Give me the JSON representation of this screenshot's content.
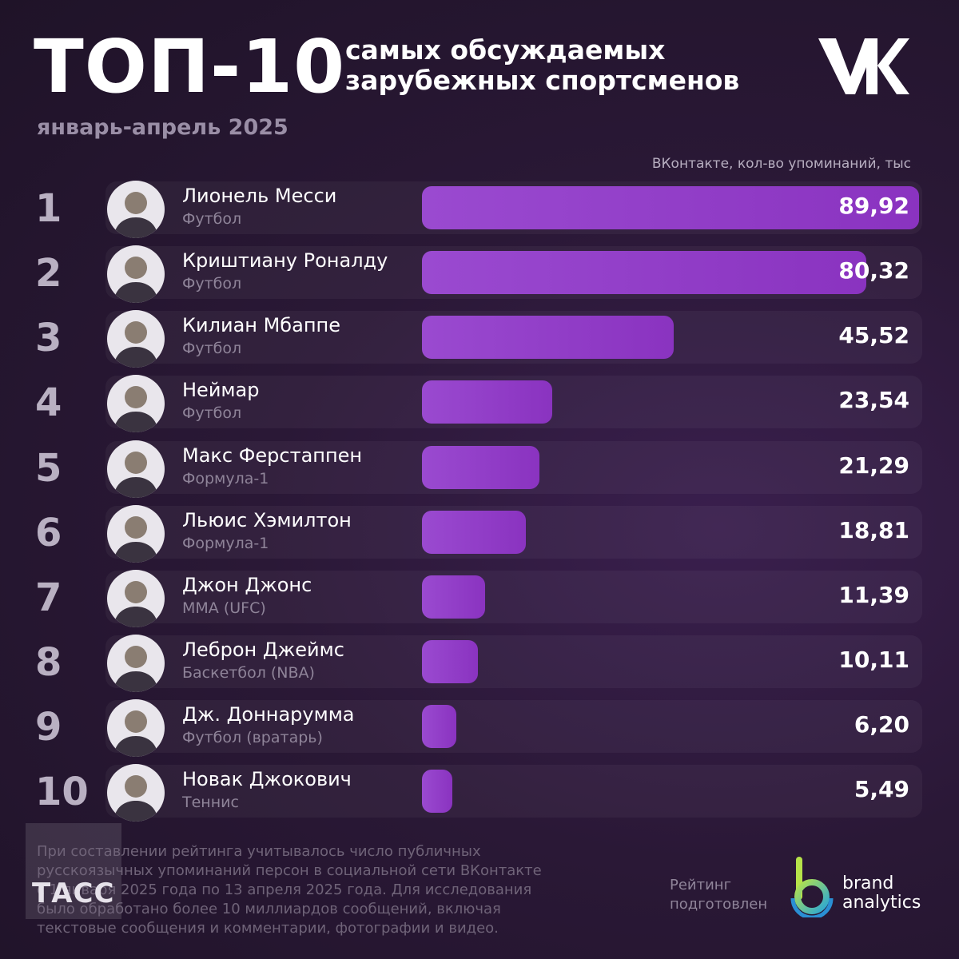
{
  "header": {
    "title": "ТОП-10",
    "subtitle_line1": "самых обсуждаемых",
    "subtitle_line2": "зарубежных спортсменов",
    "period": "январь-апрель 2025",
    "brand_logo": "vk-logo"
  },
  "chart_data": {
    "type": "bar",
    "orientation": "horizontal",
    "unit_label": "ВКонтакте, кол-во упоминаний, тыс",
    "xlim": [
      0,
      89.92
    ],
    "bar_color": "#8e3ec6",
    "items": [
      {
        "rank": "1",
        "name": "Лионель Месси",
        "sport": "Футбол",
        "value": 89.92,
        "value_label": "89,92"
      },
      {
        "rank": "2",
        "name": "Криштиану Роналду",
        "sport": "Футбол",
        "value": 80.32,
        "value_label": "80,32"
      },
      {
        "rank": "3",
        "name": "Килиан Мбаппе",
        "sport": "Футбол",
        "value": 45.52,
        "value_label": "45,52"
      },
      {
        "rank": "4",
        "name": "Неймар",
        "sport": "Футбол",
        "value": 23.54,
        "value_label": "23,54"
      },
      {
        "rank": "5",
        "name": "Макс Ферстаппен",
        "sport": "Формула-1",
        "value": 21.29,
        "value_label": "21,29"
      },
      {
        "rank": "6",
        "name": "Льюис Хэмилтон",
        "sport": "Формула-1",
        "value": 18.81,
        "value_label": "18,81"
      },
      {
        "rank": "7",
        "name": "Джон Джонс",
        "sport": "MMA (UFC)",
        "value": 11.39,
        "value_label": "11,39"
      },
      {
        "rank": "8",
        "name": "Леброн Джеймс",
        "sport": "Баскетбол (NBA)",
        "value": 10.11,
        "value_label": "10,11"
      },
      {
        "rank": "9",
        "name": "Дж. Доннарумма",
        "sport": "Футбол (вратарь)",
        "value": 6.2,
        "value_label": "6,20"
      },
      {
        "rank": "10",
        "name": "Новак Джокович",
        "sport": "Теннис",
        "value": 5.49,
        "value_label": "5,49"
      }
    ]
  },
  "footer": {
    "footnote": "При составлении рейтинга учитывалось число публичных русскоязычных упоминаний персон в социальной сети ВКонтакте с 1 января 2025 года по 13 апреля 2025 года. Для исследования было обработано более 10 миллиардов сообщений, включая текстовые сообщения и комментарии, фотографии и видео.",
    "watermark": "ТАСС",
    "credit_line1": "Рейтинг",
    "credit_line2": "подготовлен",
    "partner_line1": "brand",
    "partner_line2": "analytics",
    "partner_logo": "brand-analytics-logo"
  }
}
